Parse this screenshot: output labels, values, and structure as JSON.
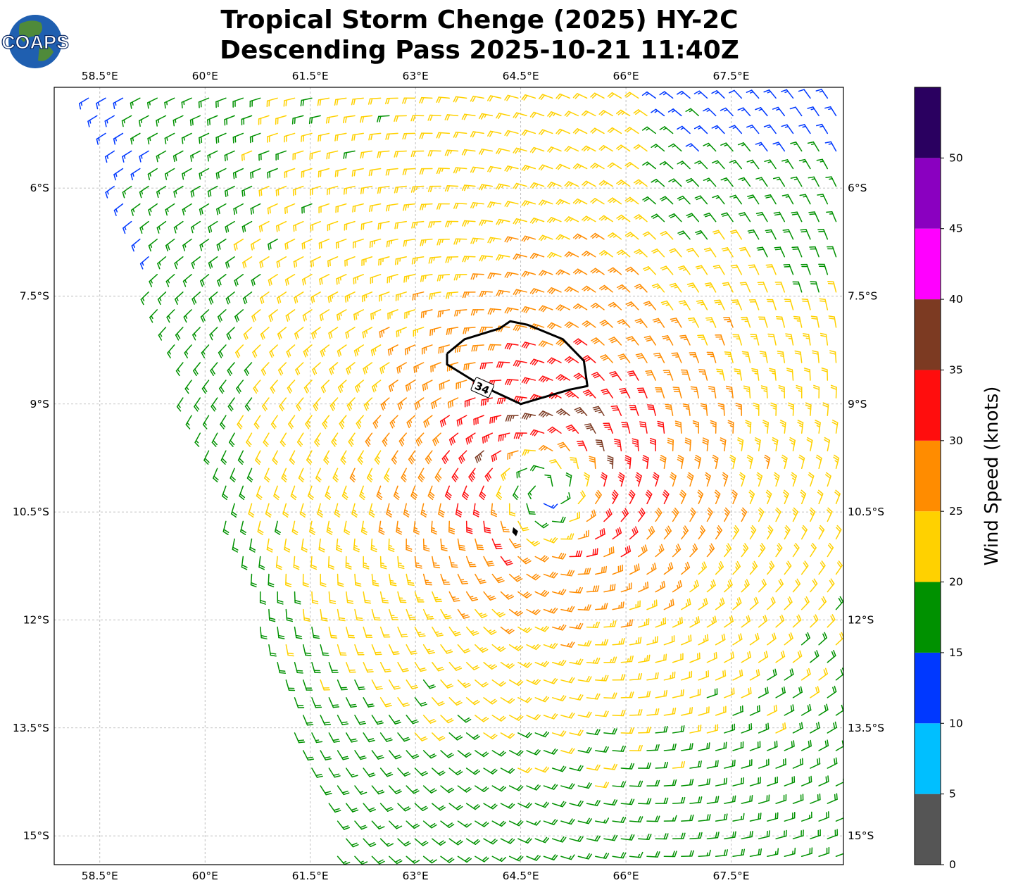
{
  "header": {
    "title_line1": "Tropical Storm Chenge (2025) HY-2C",
    "title_line2": "Descending Pass 2025-10-21 11:40Z"
  },
  "logo": {
    "text": "COAPS",
    "ocean_color": "#1f5fb0",
    "land_color": "#4f8a3a"
  },
  "chart_data": {
    "type": "wind_barbs",
    "title": "Tropical Storm Chenge (2025) HY-2C Descending Pass 2025-10-21 11:40Z",
    "xlim": [
      57.85,
      69.1
    ],
    "ylim": [
      -15.4,
      -4.6
    ],
    "x_ticks": [
      58.5,
      60,
      61.5,
      63,
      64.5,
      66,
      67.5
    ],
    "x_tick_labels": [
      "58.5°E",
      "60°E",
      "61.5°E",
      "63°E",
      "64.5°E",
      "66°E",
      "67.5°E"
    ],
    "y_ticks": [
      -6,
      -7.5,
      -9,
      -10.5,
      -12,
      -13.5,
      -15
    ],
    "y_tick_labels": [
      "6°S",
      "7.5°S",
      "9°S",
      "10.5°S",
      "12°S",
      "13.5°S",
      "15°S"
    ],
    "grid": true,
    "storm_center": {
      "lon": 64.85,
      "lat": -10.2
    },
    "swath_west_edge": [
      [
        58.2,
        -4.6
      ],
      [
        61.9,
        -15.4
      ]
    ],
    "gale_contour": {
      "label": "34",
      "units": "knots",
      "points": [
        [
          63.45,
          -8.3
        ],
        [
          63.7,
          -8.1
        ],
        [
          64.2,
          -7.95
        ],
        [
          64.35,
          -7.85
        ],
        [
          64.6,
          -7.9
        ],
        [
          65.1,
          -8.1
        ],
        [
          65.4,
          -8.4
        ],
        [
          65.45,
          -8.75
        ],
        [
          65.2,
          -8.8
        ],
        [
          64.85,
          -8.9
        ],
        [
          64.5,
          -9.0
        ],
        [
          63.95,
          -8.75
        ],
        [
          63.45,
          -8.45
        ],
        [
          63.45,
          -8.3
        ]
      ],
      "small_island": [
        [
          64.4,
          -10.73
        ],
        [
          64.45,
          -10.77
        ],
        [
          64.43,
          -10.82
        ],
        [
          64.39,
          -10.78
        ]
      ]
    },
    "wind_field": {
      "center_speed_kt": 14,
      "radius_of_max_wind_deg": 1.0,
      "max_speed_kt": 34,
      "outer_speed_kt": 18,
      "asymmetry_direction": "north-northeast"
    },
    "colorbar": {
      "label": "Wind Speed (knots)",
      "bounds": [
        0,
        5,
        10,
        15,
        20,
        25,
        30,
        35,
        40,
        45,
        50,
        55
      ],
      "tick_labels": [
        "0",
        "5",
        "10",
        "15",
        "20",
        "25",
        "30",
        "35",
        "40",
        "45",
        "50"
      ],
      "colors": [
        "#555555",
        "#00bfff",
        "#0038ff",
        "#009100",
        "#ffd100",
        "#ff8c00",
        "#ff0d0d",
        "#7c3a22",
        "#ff00ff",
        "#8a00c0",
        "#2a0060"
      ]
    }
  }
}
